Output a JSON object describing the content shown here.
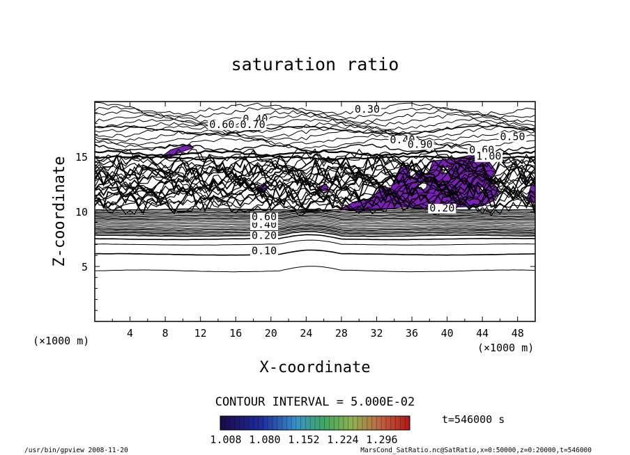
{
  "chart_data": {
    "type": "heatmap",
    "title": "saturation ratio",
    "xlabel": "X-coordinate",
    "ylabel": "Z-coordinate",
    "x_unit": "(×1000 m)",
    "y_unit": "(×1000 m)",
    "xlim": [
      0,
      50
    ],
    "ylim": [
      0,
      20
    ],
    "x_ticks": [
      4,
      8,
      12,
      16,
      20,
      24,
      28,
      32,
      36,
      40,
      44,
      48
    ],
    "y_ticks": [
      5,
      10,
      15
    ],
    "contour_interval_text": "CONTOUR INTERVAL = 5.000E-02",
    "time_label": "t=546000 s",
    "colorbar_ticks": [
      "1.008",
      "1.080",
      "1.152",
      "1.224",
      "1.296"
    ],
    "colorbar_range": [
      1.008,
      1.296
    ],
    "contour_labels": [
      {
        "text": "0.10",
        "x": 17.8,
        "z": 6.1
      },
      {
        "text": "0.20",
        "x": 17.8,
        "z": 7.5
      },
      {
        "text": "0.40",
        "x": 17.8,
        "z": 8.5
      },
      {
        "text": "0.60",
        "x": 17.8,
        "z": 9.2
      },
      {
        "text": "0.20",
        "x": 38.0,
        "z": 10.0
      },
      {
        "text": "0.30",
        "x": 29.5,
        "z": 19.0
      },
      {
        "text": "0.40",
        "x": 16.8,
        "z": 18.1
      },
      {
        "text": "0.60",
        "x": 13.0,
        "z": 17.6
      },
      {
        "text": "0.70",
        "x": 16.5,
        "z": 17.6
      },
      {
        "text": "0.40",
        "x": 33.5,
        "z": 16.2
      },
      {
        "text": "0.90",
        "x": 35.5,
        "z": 15.8
      },
      {
        "text": "0.60",
        "x": 42.5,
        "z": 15.3
      },
      {
        "text": "1.00",
        "x": 43.3,
        "z": 14.7
      },
      {
        "text": "0.50",
        "x": 46.0,
        "z": 16.5
      }
    ],
    "supersaturated_regions": [
      {
        "name": "main",
        "polygon": [
          [
            27.8,
            10.2
          ],
          [
            29.5,
            10.9
          ],
          [
            31.5,
            11.2
          ],
          [
            32.5,
            12.3
          ],
          [
            33.6,
            12.1
          ],
          [
            34.6,
            13.9
          ],
          [
            35.6,
            14.3
          ],
          [
            35.8,
            12.9
          ],
          [
            36.8,
            13.8
          ],
          [
            37.8,
            13.3
          ],
          [
            38.4,
            14.6
          ],
          [
            40.6,
            14.8
          ],
          [
            42.6,
            15.1
          ],
          [
            44.7,
            14.6
          ],
          [
            45.5,
            13.7
          ],
          [
            44.9,
            13.0
          ],
          [
            45.9,
            11.8
          ],
          [
            45.3,
            11.0
          ],
          [
            44.0,
            10.5
          ],
          [
            41.0,
            10.4
          ],
          [
            38.0,
            10.3
          ],
          [
            34.8,
            10.4
          ],
          [
            32.0,
            10.1
          ],
          [
            30.0,
            10.0
          ]
        ]
      },
      {
        "name": "right-edge",
        "polygon": [
          [
            49.0,
            11.0
          ],
          [
            49.6,
            12.5
          ],
          [
            50.0,
            12.6
          ],
          [
            50.0,
            10.8
          ]
        ]
      },
      {
        "name": "left-upper",
        "polygon": [
          [
            7.6,
            15.0
          ],
          [
            8.6,
            15.6
          ],
          [
            9.8,
            15.9
          ],
          [
            10.8,
            16.1
          ],
          [
            11.2,
            15.8
          ],
          [
            9.4,
            15.3
          ],
          [
            8.2,
            14.8
          ]
        ]
      },
      {
        "name": "small-1",
        "polygon": [
          [
            18.5,
            12.0
          ],
          [
            19.2,
            12.6
          ],
          [
            19.7,
            12.2
          ],
          [
            19.0,
            11.7
          ]
        ]
      },
      {
        "name": "small-2",
        "polygon": [
          [
            25.2,
            12.2
          ],
          [
            26.3,
            12.5
          ],
          [
            26.5,
            12.0
          ],
          [
            25.6,
            11.8
          ]
        ]
      }
    ],
    "footer_left": "/usr/bin/gpview   2008-11-20",
    "footer_right": "MarsCond_SatRatio.nc@SatRatio,x=0:50000,z=0:20000,t=546000"
  }
}
